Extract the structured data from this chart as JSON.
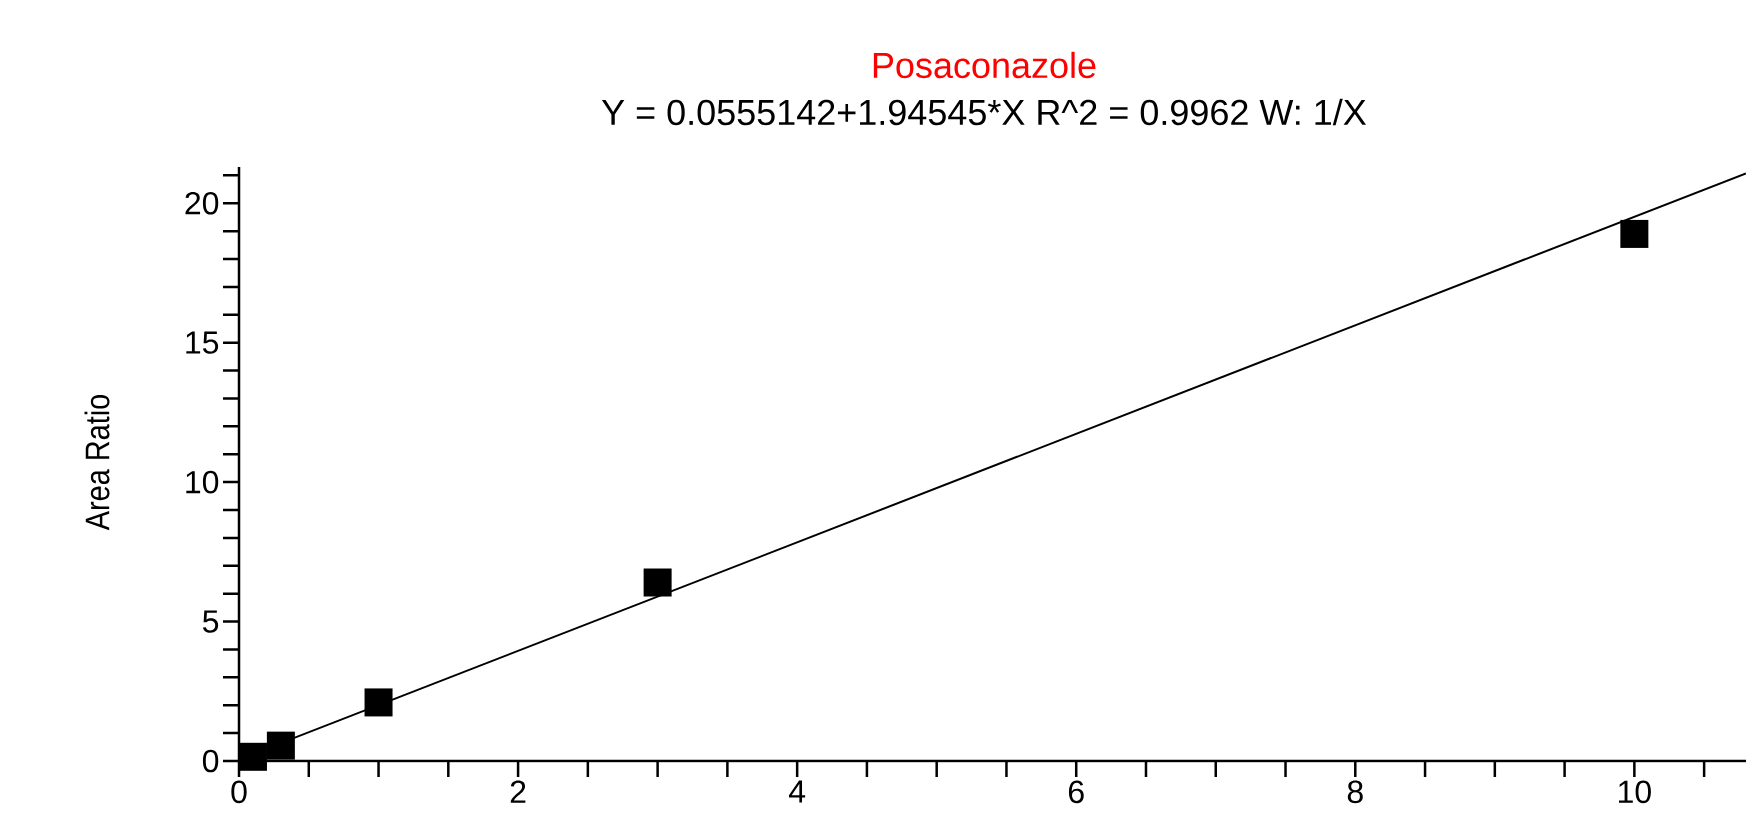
{
  "chart_data": {
    "type": "scatter",
    "title": "Posaconazole",
    "subtitle": "Y = 0.0555142+1.94545*X   R^2 = 0.9962   W: 1/X",
    "ylabel": "Area Ratio",
    "series": [
      {
        "type": "scatter",
        "color": "#000000",
        "marker": "square",
        "x": [
          0.1,
          0.3,
          1,
          3,
          10
        ],
        "values": [
          0.15,
          0.55,
          2.1,
          6.4,
          18.9
        ]
      },
      {
        "type": "line",
        "color": "#000000",
        "marker": "none",
        "line_style": "solid",
        "x": [
          0,
          10.8
        ],
        "values": [
          0.06,
          21.07
        ]
      }
    ],
    "xlim": [
      0,
      10.8
    ],
    "ylim": [
      0,
      21.3
    ],
    "xticks": [
      0,
      {
        "value": 0.5,
        "label": null
      },
      {
        "value": 1,
        "label": null
      },
      {
        "value": 1.5,
        "label": null
      },
      2,
      {
        "value": 2.5,
        "label": null
      },
      {
        "value": 3,
        "label": null
      },
      {
        "value": 3.5,
        "label": null
      },
      4,
      {
        "value": 4.5,
        "label": null
      },
      {
        "value": 5,
        "label": null
      },
      {
        "value": 5.5,
        "label": null
      },
      6,
      {
        "value": 6.5,
        "label": null
      },
      {
        "value": 7,
        "label": null
      },
      {
        "value": 7.5,
        "label": null
      },
      8,
      {
        "value": 8.5,
        "label": null
      },
      {
        "value": 9,
        "label": null
      },
      {
        "value": 9.5,
        "label": null
      },
      10,
      {
        "value": 10.5,
        "label": null
      }
    ],
    "yticks": [
      0,
      {
        "value": 1,
        "label": null
      },
      {
        "value": 2,
        "label": null
      },
      {
        "value": 3,
        "label": null
      },
      {
        "value": 4,
        "label": null
      },
      5,
      {
        "value": 6,
        "label": null
      },
      {
        "value": 7,
        "label": null
      },
      {
        "value": 8,
        "label": null
      },
      {
        "value": 9,
        "label": null
      },
      10,
      {
        "value": 11,
        "label": null
      },
      {
        "value": 12,
        "label": null
      },
      {
        "value": 13,
        "label": null
      },
      {
        "value": 14,
        "label": null
      },
      15,
      {
        "value": 16,
        "label": null
      },
      {
        "value": 17,
        "label": null
      },
      {
        "value": 18,
        "label": null
      },
      {
        "value": 19,
        "label": null
      },
      20,
      {
        "value": 21,
        "label": null
      }
    ],
    "grid": false
  }
}
